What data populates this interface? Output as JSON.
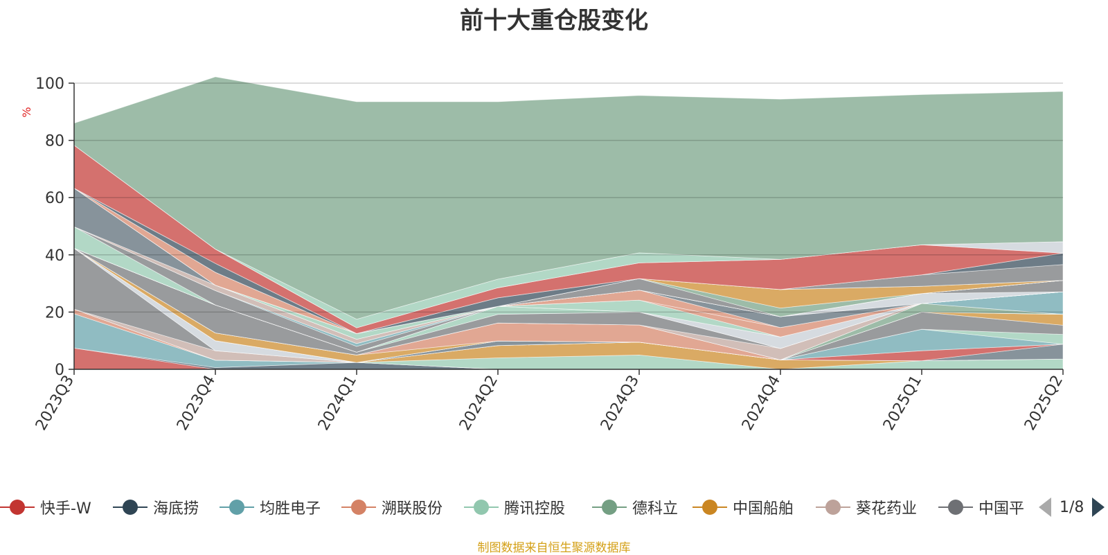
{
  "chart_data": {
    "type": "area",
    "title": "前十大重仓股变化",
    "ylabel": "%",
    "ylim": [
      0,
      100
    ],
    "yticks": [
      0,
      20,
      40,
      60,
      80,
      100
    ],
    "grid": true,
    "categories": [
      "2023Q3",
      "2023Q4",
      "2024Q1",
      "2024Q2",
      "2024Q3",
      "2024Q4",
      "2025Q1",
      "2025Q2"
    ],
    "stacked": true,
    "series": [
      {
        "name": "快手-W",
        "color": "#c23531",
        "values": [
          7.4,
          0.0,
          0.0,
          0.0,
          0.0,
          0.0,
          0.0,
          0.0
        ]
      },
      {
        "name": "海底捞",
        "color": "#2f4554",
        "values": [
          0.0,
          0.6,
          2.4,
          0.0,
          0.0,
          0.0,
          0.0,
          0.0
        ]
      },
      {
        "name": "均胜电子",
        "color": "#61a0a8",
        "values": [
          12.0,
          2.6,
          0.0,
          0.0,
          0.0,
          0.0,
          0.0,
          0.0
        ]
      },
      {
        "name": "溯联股份",
        "color": "#d48265",
        "values": [
          1.6,
          0.0,
          0.0,
          0.0,
          0.0,
          0.0,
          0.0,
          0.0
        ]
      },
      {
        "name": "腾讯控股",
        "color": "#91c7ae",
        "values": [
          0.0,
          0.0,
          0.0,
          4.0,
          5.0,
          0.0,
          3.0,
          3.6
        ]
      },
      {
        "name": "德科立",
        "color": "#749f83",
        "values": [
          0.0,
          0.0,
          0.0,
          0.0,
          0.0,
          0.0,
          0.0,
          0.0
        ]
      },
      {
        "name": "中国船舶",
        "color": "#ca8622",
        "values": [
          0.0,
          0.0,
          0.0,
          4.3,
          4.5,
          3.3,
          0.0,
          0.0
        ]
      },
      {
        "name": "葵花药业",
        "color": "#bda29a",
        "values": [
          0.0,
          3.3,
          0.0,
          0.0,
          0.0,
          0.0,
          0.0,
          0.0
        ]
      },
      {
        "name": "中国平安",
        "color": "#6e7074",
        "values": [
          21.3,
          0.0,
          0.0,
          0.0,
          0.0,
          0.0,
          0.0,
          0.0
        ]
      },
      {
        "name": "",
        "color": "#c4ccd3",
        "values": [
          0.0,
          3.5,
          0.0,
          0.0,
          0.0,
          0.0,
          0.0,
          0.0
        ]
      },
      {
        "name": "",
        "color": "#546570",
        "values": [
          0.0,
          0.0,
          0.0,
          1.6,
          0.0,
          0.0,
          0.0,
          5.2
        ]
      },
      {
        "name": "",
        "color": "#c23531",
        "values": [
          0.0,
          0.0,
          0.0,
          0.0,
          0.0,
          0.0,
          3.5,
          0.0
        ]
      },
      {
        "name": "",
        "color": "#61a0a8",
        "values": [
          0.0,
          0.0,
          0.0,
          0.0,
          0.0,
          0.0,
          7.5,
          0.0
        ]
      },
      {
        "name": "",
        "color": "#91c7ae",
        "values": [
          0.0,
          0.0,
          0.0,
          0.0,
          0.0,
          0.0,
          0.0,
          3.4
        ]
      },
      {
        "name": "",
        "color": "#6e7074",
        "values": [
          0.0,
          0.0,
          0.0,
          0.0,
          0.0,
          0.0,
          6.0,
          3.2
        ]
      },
      {
        "name": "",
        "color": "#ca8622",
        "values": [
          0.0,
          2.7,
          2.6,
          0.0,
          0.0,
          0.0,
          0.0,
          3.8
        ]
      },
      {
        "name": "",
        "color": "#d48265",
        "values": [
          0.0,
          0.0,
          0.0,
          6.3,
          6.0,
          0.0,
          0.0,
          0.0
        ]
      },
      {
        "name": "",
        "color": "#749f83",
        "values": [
          0.0,
          0.0,
          0.0,
          0.0,
          0.0,
          0.0,
          3.0,
          0.0
        ]
      },
      {
        "name": "",
        "color": "#61a0a8",
        "values": [
          0.0,
          0.0,
          0.0,
          0.0,
          0.0,
          0.0,
          0.0,
          7.9
        ]
      },
      {
        "name": "",
        "color": "#bda29a",
        "values": [
          0.0,
          0.0,
          0.0,
          0.0,
          0.0,
          4.0,
          0.0,
          0.0
        ]
      },
      {
        "name": "",
        "color": "#6e7074",
        "values": [
          0.0,
          9.8,
          1.0,
          3.0,
          4.5,
          0.0,
          0.0,
          0.0
        ]
      },
      {
        "name": "",
        "color": "#91c7ae",
        "values": [
          0.0,
          0.0,
          0.0,
          2.8,
          0.0,
          0.0,
          0.0,
          0.0
        ]
      },
      {
        "name": "",
        "color": "#c4ccd3",
        "values": [
          0.0,
          0.0,
          0.0,
          0.0,
          0.0,
          4.0,
          0.0,
          0.0
        ]
      },
      {
        "name": "",
        "color": "#91c7ae",
        "values": [
          0.0,
          0.0,
          0.0,
          0.0,
          4.2,
          0.0,
          0.0,
          0.0
        ]
      },
      {
        "name": "",
        "color": "#d48265",
        "values": [
          0.0,
          0.0,
          0.0,
          0.0,
          0.0,
          3.3,
          0.0,
          0.0
        ]
      },
      {
        "name": "",
        "color": "#d48265",
        "values": [
          0.0,
          0.0,
          0.0,
          0.0,
          3.5,
          0.0,
          0.0,
          0.0
        ]
      },
      {
        "name": "",
        "color": "#546570",
        "values": [
          0.0,
          0.0,
          0.0,
          0.0,
          0.0,
          3.8,
          0.0,
          0.0
        ]
      },
      {
        "name": "",
        "color": "#c4ccd3",
        "values": [
          0.0,
          0.0,
          0.0,
          0.0,
          0.0,
          0.0,
          3.5,
          0.0
        ]
      },
      {
        "name": "",
        "color": "#6e7074",
        "values": [
          0.0,
          0.0,
          0.0,
          0.0,
          0.0,
          0.0,
          0.0,
          4.0
        ]
      },
      {
        "name": "",
        "color": "#91c7ae",
        "values": [
          7.5,
          0.0,
          0.0,
          0.0,
          0.0,
          0.0,
          0.0,
          0.0
        ]
      },
      {
        "name": "",
        "color": "#6e7074",
        "values": [
          0.0,
          5.0,
          2.0,
          0.0,
          0.0,
          0.0,
          0.0,
          0.0
        ]
      },
      {
        "name": "",
        "color": "#61a0a8",
        "values": [
          0.0,
          0.0,
          1.0,
          0.0,
          0.0,
          0.0,
          0.0,
          0.0
        ]
      },
      {
        "name": "",
        "color": "#bda29a",
        "values": [
          0.0,
          1.9,
          1.5,
          0.0,
          0.0,
          0.0,
          0.0,
          0.0
        ]
      },
      {
        "name": "",
        "color": "#d48265",
        "values": [
          0.0,
          0.0,
          0.0,
          0.0,
          0.0,
          0.0,
          0.0,
          0.0
        ]
      },
      {
        "name": "",
        "color": "#546570",
        "values": [
          13.5,
          0.0,
          0.0,
          0.0,
          0.0,
          0.0,
          0.0,
          0.0
        ]
      },
      {
        "name": "",
        "color": "#91c7ae",
        "values": [
          0.0,
          0.0,
          2.0,
          0.0,
          0.0,
          0.0,
          0.0,
          0.0
        ]
      },
      {
        "name": "",
        "color": "#6e7074",
        "values": [
          0.0,
          0.0,
          0.0,
          0.0,
          4.0,
          0.0,
          0.0,
          0.0
        ]
      },
      {
        "name": "",
        "color": "#749f83",
        "values": [
          0.0,
          0.0,
          0.0,
          0.0,
          0.0,
          3.0,
          0.0,
          0.0
        ]
      },
      {
        "name": "",
        "color": "#ca8622",
        "values": [
          0.0,
          0.0,
          0.0,
          0.0,
          0.0,
          6.5,
          2.5,
          0.0
        ]
      },
      {
        "name": "",
        "color": "#d48265",
        "values": [
          0.0,
          4.5,
          0.0,
          0.0,
          0.0,
          0.0,
          0.0,
          0.0
        ]
      },
      {
        "name": "",
        "color": "#6e7074",
        "values": [
          0.0,
          0.0,
          0.0,
          0.0,
          0.0,
          0.0,
          4.0,
          5.5
        ]
      },
      {
        "name": "",
        "color": "#2f4554",
        "values": [
          0.0,
          3.1,
          0.0,
          3.0,
          0.0,
          0.0,
          0.0,
          4.0
        ]
      },
      {
        "name": "",
        "color": "#c23531",
        "values": [
          15.0,
          5.0,
          2.0,
          3.5,
          5.5,
          10.5,
          10.5,
          0.0
        ]
      },
      {
        "name": "",
        "color": "#c4ccd3",
        "values": [
          0.0,
          0.0,
          0.0,
          0.0,
          0.0,
          0.0,
          0.0,
          4.0
        ]
      },
      {
        "name": "",
        "color": "#91c7ae",
        "values": [
          0.0,
          0.0,
          3.0,
          3.0,
          3.5,
          0.0,
          0.0,
          0.0
        ]
      },
      {
        "name": "",
        "color": "#749f83",
        "values": [
          7.7,
          60.2,
          76.0,
          62.0,
          55.0,
          56.0,
          52.5,
          52.5
        ]
      }
    ]
  },
  "legend": {
    "items": [
      {
        "label": "快手-W",
        "color": "#c23531"
      },
      {
        "label": "海底捞",
        "color": "#2f4554"
      },
      {
        "label": "均胜电子",
        "color": "#61a0a8"
      },
      {
        "label": "溯联股份",
        "color": "#d48265"
      },
      {
        "label": "腾讯控股",
        "color": "#91c7ae"
      },
      {
        "label": "德科立",
        "color": "#749f83"
      },
      {
        "label": "中国船舶",
        "color": "#ca8622"
      },
      {
        "label": "葵花药业",
        "color": "#bda29a"
      },
      {
        "label": "中国平安",
        "color": "#6e7074"
      }
    ],
    "page_indicator": "1/8"
  },
  "source_text": "制图数据来自恒生聚源数据库",
  "colors": {
    "source_text": "#d4a017",
    "axis": "#333333",
    "ylabel": "#e02020",
    "grid": "rgba(0,0,0,0.18)"
  }
}
